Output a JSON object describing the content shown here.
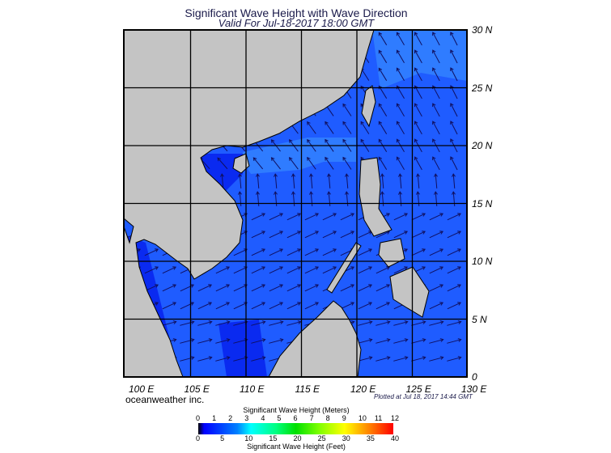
{
  "chart_data": {
    "type": "heatmap",
    "title": "Significant Wave Height with Wave Direction",
    "subtitle": "Valid For Jul-18-2017 18:00 GMT",
    "x_ticks": [
      "100 E",
      "105 E",
      "110 E",
      "115 E",
      "120 E",
      "125 E",
      "130 E"
    ],
    "y_ticks": [
      "30 N",
      "25 N",
      "20 N",
      "15 N",
      "10 N",
      "5 N",
      "0"
    ],
    "xlim": [
      99,
      130
    ],
    "ylim": [
      0,
      30
    ],
    "grid": true,
    "colorbar": {
      "title_top": "Significant Wave Height (Meters)",
      "ticks_top": [
        "0",
        "1",
        "2",
        "3",
        "4",
        "5",
        "6",
        "7",
        "8",
        "9",
        "10",
        "11",
        "12"
      ],
      "title_bottom": "Significant Wave Height (Feet)",
      "ticks_bottom": [
        "0",
        "5",
        "10",
        "15",
        "20",
        "25",
        "30",
        "35",
        "40"
      ],
      "colors": [
        "#000000",
        "#0000ff",
        "#00a0ff",
        "#00ffff",
        "#00ff80",
        "#00e000",
        "#80ff00",
        "#ffff00",
        "#ff8000",
        "#ff0000"
      ]
    },
    "colors": {
      "land": "#c4c4c4",
      "ocean": "#1f5cff",
      "ocean_light": "#2f7cff",
      "ocean_dark": "#0a2af0",
      "arrow": "#101060"
    }
  },
  "brand": "oceanweather inc.",
  "plotted": "Plotted at Jul 18, 2017 14:44 GMT"
}
